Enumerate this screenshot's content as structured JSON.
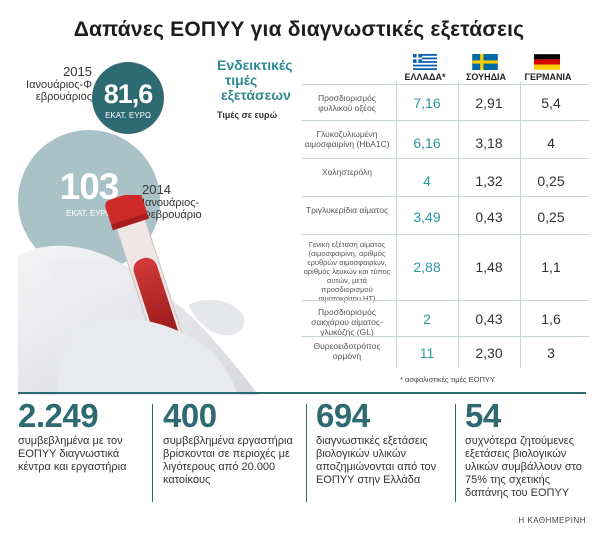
{
  "title": "Δαπάνες ΕΟΠΥΥ για διαγνωστικές εξετάσεις",
  "bubble_2015": {
    "year": "2015",
    "period": "Ιανουάριος-Φεβρουάριος",
    "value": "81,6",
    "unit": "ΕΚΑΤ. ΕΥΡΩ"
  },
  "bubble_2014": {
    "year": "2014",
    "period": "Ιανουάριος-Φεβρουάριος",
    "value": "103",
    "unit": "ΕΚΑΤ. ΕΥΡΩ"
  },
  "indicative": {
    "title_line1": "Ενδεικτικές",
    "title_line2": "τιμές",
    "title_line3": "εξετάσεων",
    "subtitle": "Τιμές σε ευρώ"
  },
  "columns": [
    "ΕΛΛΑΔΑ*",
    "ΣΟΥΗΔΙΑ",
    "ΓΕΡΜΑΝΙΑ"
  ],
  "rows": [
    {
      "label": "Προσδιορισμός φυλλικού οξέος",
      "gr": "7,16",
      "se": "2,91",
      "de": "5,4"
    },
    {
      "label": "Γλυκοζυλιωμένη αιμοσφαιρίνη (HbA1C)",
      "gr": "6,16",
      "se": "3,18",
      "de": "4"
    },
    {
      "label": "Χοληστερόλη",
      "gr": "4",
      "se": "1,32",
      "de": "0,25"
    },
    {
      "label": "Τριγλυκερίδια αίματος",
      "gr": "3,49",
      "se": "0,43",
      "de": "0,25"
    },
    {
      "label": "Γενική εξέταση αίματος (αιμοσφαιρίνη, αριθμός ερυθρών αιμοσφαιρίων, αριθμός λευκών και τύπος αυτών, μετά προσδιορισμού αιματοκρίτου HT)",
      "gr": "2,88",
      "se": "1,48",
      "de": "1,1"
    },
    {
      "label": "Προσδιορισμός σακχάρου αίματος-γλυκόζης (GL)",
      "gr": "2",
      "se": "0,43",
      "de": "1,6"
    },
    {
      "label": "Θυρεοειδοτρόπος ορμόνη",
      "gr": "11",
      "se": "2,30",
      "de": "3"
    }
  ],
  "footnote": "* ασφαλιστικές τιμές ΕΟΠΥΥ",
  "stats": [
    {
      "value": "2.249",
      "text": "συμβεβλημένα με τον ΕΟΠΥΥ διαγνωστικά κέντρα και εργαστήρια"
    },
    {
      "value": "400",
      "text": "συμβεβλημένα εργαστήρια βρίσκονται σε περιοχές με λιγότερους από 20.000 κατοίκους"
    },
    {
      "value": "694",
      "text": "διαγνωστικές εξετάσεις βιολογικών υλικών αποζημιώνονται από τον ΕΟΠΥΥ στην Ελλάδα"
    },
    {
      "value": "54",
      "text": "συχνότερα ζητούμενες εξετάσεις βιολογικών υλικών συμβάλλουν στο 75% της σχετικής δαπάνης του ΕΟΠΥΥ"
    }
  ],
  "credit": "Η ΚΑΘΗΜΕΡΙΝΗ",
  "colors": {
    "teal_dark": "#2e6a72",
    "teal_light": "#a8c2c8",
    "greek_values": "#2e9aa2"
  }
}
